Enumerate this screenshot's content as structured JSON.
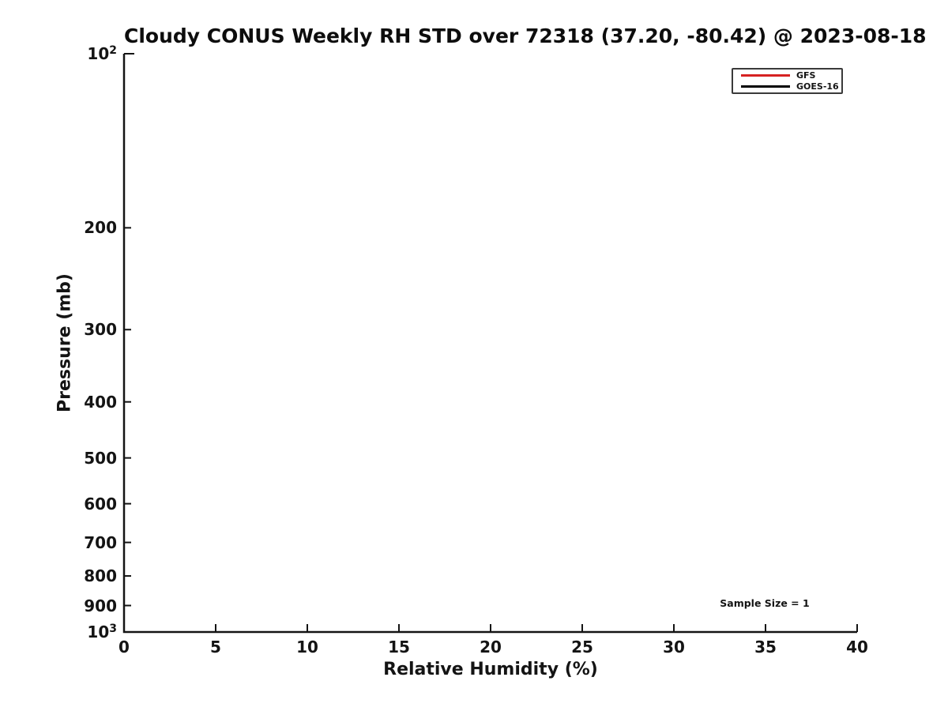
{
  "chart_data": {
    "type": "line",
    "title": "Cloudy CONUS Weekly RH STD over 72318 (37.20, -80.42) @ 2023-08-18",
    "xlabel": "Relative Humidity (%)",
    "ylabel": "Pressure (mb)",
    "xlim": [
      0,
      40
    ],
    "ylim": [
      1000,
      100
    ],
    "yscale": "log",
    "grid": false,
    "x_ticks": [
      0,
      5,
      10,
      15,
      20,
      25,
      30,
      35,
      40
    ],
    "x_tick_labels": [
      "0",
      "5",
      "10",
      "15",
      "20",
      "25",
      "30",
      "35",
      "40"
    ],
    "y_ticks": [
      100,
      200,
      300,
      400,
      500,
      600,
      700,
      800,
      900,
      1000
    ],
    "y_tick_labels": [
      "10^2",
      "200",
      "300",
      "400",
      "500",
      "600",
      "700",
      "800",
      "900",
      "10^3"
    ],
    "legend": {
      "position": "upper right",
      "entries": [
        {
          "label": "GFS",
          "color": "#d62222"
        },
        {
          "label": "GOES-16",
          "color": "#000000"
        }
      ]
    },
    "series": [
      {
        "name": "GFS",
        "color": "#d62222",
        "points": []
      },
      {
        "name": "GOES-16",
        "color": "#000000",
        "points": []
      }
    ],
    "annotations": [
      {
        "text": "Sample Size = 1",
        "x_axes_frac": 0.873,
        "y_axes_frac_from_top": 0.952
      }
    ]
  }
}
